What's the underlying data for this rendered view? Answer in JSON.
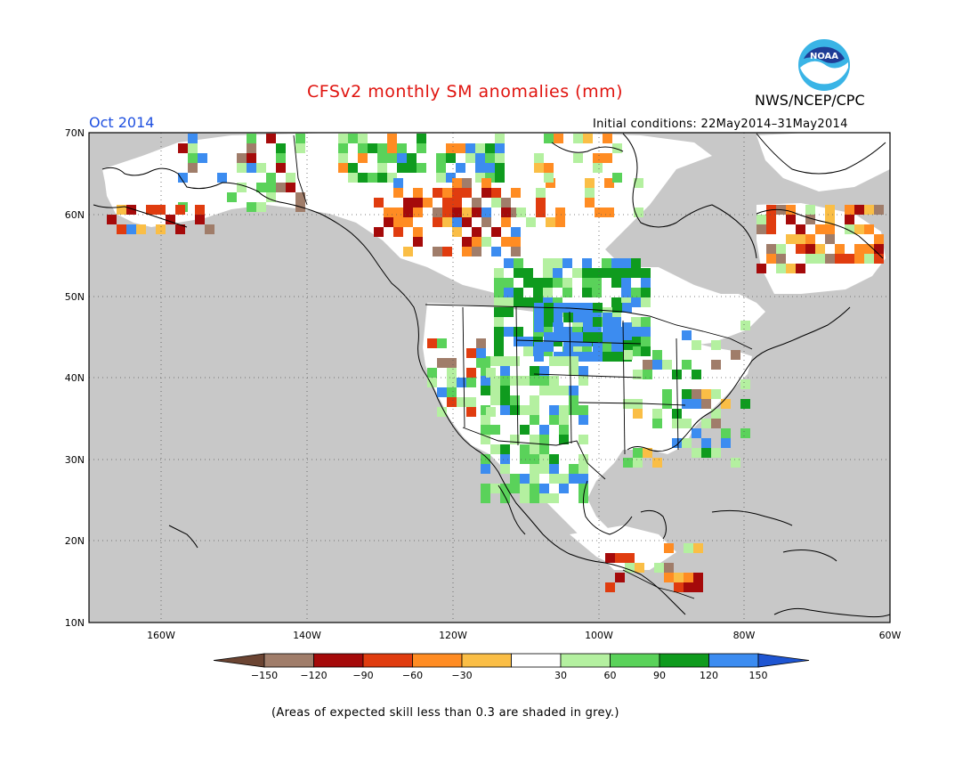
{
  "header": {
    "title": "CFSv2 monthly SM anomalies (mm)",
    "month": "Oct 2014",
    "org": "NWS/NCEP/CPC",
    "initial_conditions": "Initial conditions: 22May2014–31May2014",
    "logo_text": "NOAA"
  },
  "map": {
    "lat_labels": [
      "70N",
      "60N",
      "50N",
      "40N",
      "30N",
      "20N",
      "10N"
    ],
    "lon_labels": [
      "160W",
      "140W",
      "120W",
      "100W",
      "80W",
      "60W"
    ],
    "lat_range": [
      10,
      70
    ],
    "lon_range": [
      -172,
      -60
    ],
    "grid": "dotted",
    "grey_meaning": "expected skill less than 0.3"
  },
  "legend": {
    "labels": [
      "−150",
      "−120",
      "−90",
      "−60",
      "−30",
      "30",
      "60",
      "90",
      "120",
      "150"
    ],
    "colors": [
      "#6b4432",
      "#a07d6a",
      "#a50a0a",
      "#e03c0f",
      "#ff8c23",
      "#fabe46",
      "#ffffff",
      "#b4f0a0",
      "#5ad25a",
      "#0f9b1e",
      "#3c8cf0",
      "#1e55d2"
    ]
  },
  "footnote": "(Areas of expected skill less than 0.3 are shaded in grey.)",
  "colors": {
    "ocean_grey": "#c8c8c8",
    "land_grey": "#c8c8c8",
    "title_red": "#e0140f",
    "month_blue": "#1f50e0"
  }
}
